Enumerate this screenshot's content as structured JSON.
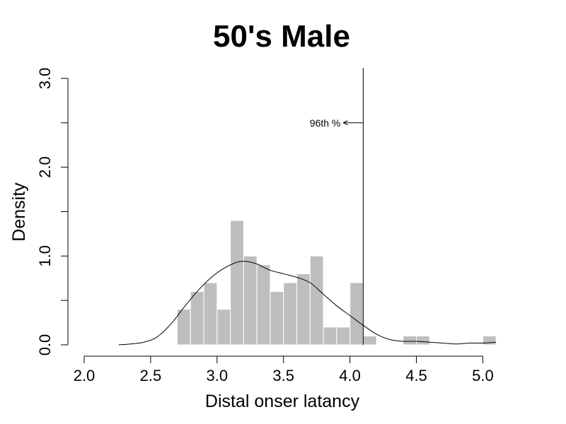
{
  "chart_data": {
    "type": "histogram",
    "title": "50's Male",
    "xlabel": "Distal onser latancy",
    "ylabel": "Density",
    "xlim": [
      2.0,
      5.1
    ],
    "ylim": [
      0,
      3.0
    ],
    "x_ticks": [
      2.0,
      2.5,
      3.0,
      3.5,
      4.0,
      4.5,
      5.0
    ],
    "x_tick_labels": [
      "2.0",
      "2.5",
      "3.0",
      "3.5",
      "4.0",
      "4.5",
      "5.0"
    ],
    "y_ticks": [
      0.0,
      0.5,
      1.0,
      1.5,
      2.0,
      2.5,
      3.0
    ],
    "y_tick_labels": [
      "0.0",
      "",
      "1.0",
      "",
      "2.0",
      "",
      "3.0"
    ],
    "bin_width": 0.1,
    "bars_color": "#bebebe",
    "bars": [
      {
        "x0": 2.7,
        "density": 0.4
      },
      {
        "x0": 2.8,
        "density": 0.6
      },
      {
        "x0": 2.9,
        "density": 0.7
      },
      {
        "x0": 3.0,
        "density": 0.4
      },
      {
        "x0": 3.1,
        "density": 1.4
      },
      {
        "x0": 3.2,
        "density": 1.0
      },
      {
        "x0": 3.3,
        "density": 0.9
      },
      {
        "x0": 3.4,
        "density": 0.6
      },
      {
        "x0": 3.5,
        "density": 0.7
      },
      {
        "x0": 3.6,
        "density": 0.8
      },
      {
        "x0": 3.7,
        "density": 1.0
      },
      {
        "x0": 3.8,
        "density": 0.2
      },
      {
        "x0": 3.9,
        "density": 0.2
      },
      {
        "x0": 4.0,
        "density": 0.7
      },
      {
        "x0": 4.1,
        "density": 0.1
      },
      {
        "x0": 4.4,
        "density": 0.1
      },
      {
        "x0": 4.5,
        "density": 0.1
      },
      {
        "x0": 5.0,
        "density": 0.1
      }
    ],
    "density_curve": {
      "x": [
        2.26,
        2.35,
        2.45,
        2.55,
        2.65,
        2.75,
        2.85,
        2.95,
        3.05,
        3.15,
        3.22,
        3.3,
        3.4,
        3.5,
        3.6,
        3.7,
        3.8,
        3.9,
        4.0,
        4.1,
        4.2,
        4.3,
        4.4,
        4.5,
        4.6,
        4.7,
        4.8,
        4.9,
        5.0,
        5.1
      ],
      "y": [
        0.0,
        0.01,
        0.03,
        0.09,
        0.23,
        0.42,
        0.6,
        0.75,
        0.86,
        0.93,
        0.94,
        0.91,
        0.84,
        0.8,
        0.76,
        0.7,
        0.57,
        0.44,
        0.33,
        0.22,
        0.12,
        0.06,
        0.04,
        0.04,
        0.03,
        0.02,
        0.01,
        0.02,
        0.02,
        0.03
      ]
    },
    "vline": {
      "x": 4.1
    },
    "annotation": {
      "text": "96th %",
      "arrow_to_x": 4.1,
      "y": 2.5
    }
  }
}
